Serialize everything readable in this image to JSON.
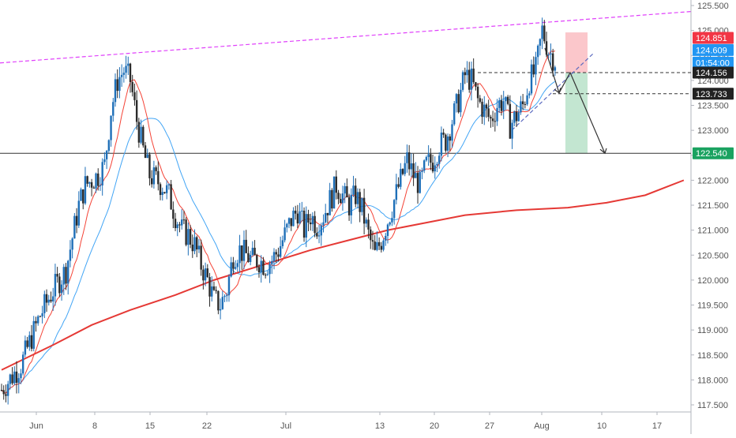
{
  "chart_data": {
    "type": "candlestick",
    "title": "",
    "xlabel": "",
    "ylabel": "",
    "ylim": [
      117.2,
      125.8
    ],
    "grid": false,
    "x_ticks": [
      "Jun",
      "8",
      "15",
      "22",
      "Jul",
      "13",
      "20",
      "27",
      "Aug",
      "10",
      "17"
    ],
    "y_ticks": [
      "117.500",
      "118.000",
      "118.500",
      "119.000",
      "119.500",
      "120.000",
      "120.500",
      "121.000",
      "121.500",
      "122.000",
      "122.500",
      "123.000",
      "123.500",
      "124.000",
      "124.500",
      "125.000",
      "125.500"
    ],
    "close_path": [
      [
        0,
        117.8
      ],
      [
        3,
        118.3
      ],
      [
        6,
        119.3
      ],
      [
        8,
        119.8
      ],
      [
        10,
        120.2
      ],
      [
        12,
        121.5
      ],
      [
        13,
        121.9
      ],
      [
        15,
        122.1
      ],
      [
        16,
        122.3
      ],
      [
        17,
        123.4
      ],
      [
        18,
        124.0
      ],
      [
        19,
        124.2
      ],
      [
        20,
        124.0
      ],
      [
        21,
        123.2
      ],
      [
        22,
        122.6
      ],
      [
        23,
        122.1
      ],
      [
        24,
        122.0
      ],
      [
        25,
        121.9
      ],
      [
        26,
        121.7
      ],
      [
        27,
        121.3
      ],
      [
        28,
        121.0
      ],
      [
        29,
        120.9
      ],
      [
        30,
        120.7
      ],
      [
        31,
        120.3
      ],
      [
        32,
        120.0
      ],
      [
        33,
        119.6
      ],
      [
        34,
        119.5
      ],
      [
        35,
        119.8
      ],
      [
        36,
        120.5
      ],
      [
        37,
        120.6
      ],
      [
        38,
        120.5
      ],
      [
        39,
        120.4
      ],
      [
        40,
        120.4
      ],
      [
        41,
        120.3
      ],
      [
        42,
        120.4
      ],
      [
        43,
        120.6
      ],
      [
        44,
        120.9
      ],
      [
        45,
        121.2
      ],
      [
        46,
        121.4
      ],
      [
        47,
        121.0
      ],
      [
        48,
        121.3
      ],
      [
        49,
        121.1
      ],
      [
        50,
        121.3
      ],
      [
        51,
        121.6
      ],
      [
        52,
        121.9
      ],
      [
        53,
        121.7
      ],
      [
        54,
        121.5
      ],
      [
        55,
        121.7
      ],
      [
        56,
        121.4
      ],
      [
        57,
        120.9
      ],
      [
        58,
        120.5
      ],
      [
        59,
        120.8
      ],
      [
        60,
        121.2
      ],
      [
        61,
        121.6
      ],
      [
        62,
        122.0
      ],
      [
        63,
        122.4
      ],
      [
        64,
        122.1
      ],
      [
        65,
        121.9
      ],
      [
        66,
        122.3
      ],
      [
        67,
        122.4
      ],
      [
        68,
        122.7
      ],
      [
        69,
        122.8
      ],
      [
        70,
        123.2
      ],
      [
        71,
        123.6
      ],
      [
        72,
        124.1
      ],
      [
        73,
        124.0
      ],
      [
        74,
        123.6
      ],
      [
        75,
        123.4
      ],
      [
        76,
        123.2
      ],
      [
        77,
        123.5
      ],
      [
        78,
        123.6
      ],
      [
        79,
        123.1
      ],
      [
        80,
        123.3
      ],
      [
        81,
        123.5
      ],
      [
        82,
        124.0
      ],
      [
        83,
        124.2
      ],
      [
        84,
        125.0
      ],
      [
        85,
        124.6
      ],
      [
        86,
        124.4
      ]
    ],
    "series": [
      {
        "name": "",
        "color": "#e53935",
        "points": [
          [
            106,
            122.0
          ],
          [
            104,
            121.9
          ],
          [
            100,
            121.7
          ],
          [
            94,
            121.55
          ],
          [
            88,
            121.45
          ],
          [
            80,
            121.4
          ],
          [
            72,
            121.3
          ],
          [
            66,
            121.15
          ],
          [
            60,
            121.0
          ],
          [
            54,
            120.8
          ],
          [
            48,
            120.6
          ],
          [
            43,
            120.4
          ],
          [
            38,
            120.2
          ],
          [
            33,
            120.0
          ],
          [
            27,
            119.7
          ],
          [
            20,
            119.4
          ],
          [
            14,
            119.1
          ],
          [
            8,
            118.7
          ],
          [
            0,
            118.2
          ]
        ]
      },
      {
        "name": "",
        "color": "#f44336",
        "points": []
      },
      {
        "name": "",
        "color": "#42a5f5",
        "points": []
      }
    ],
    "horizontal_lines": [
      {
        "label": "122.540",
        "value": 122.54,
        "style": "solid",
        "color": "#333333"
      }
    ],
    "price_labels": [
      {
        "value": "124.851",
        "bg": "#f23645"
      },
      {
        "value": "124.609",
        "bg": "#2196f3"
      },
      {
        "value": "01:54:00",
        "bg": "#2196f3"
      },
      {
        "value": "124.156",
        "bg": "#222222"
      },
      {
        "value": "123.733",
        "bg": "#222222"
      },
      {
        "value": "122.540",
        "bg": "#1aa260"
      }
    ],
    "trade_zone": {
      "entry": 124.156,
      "stop": 124.851,
      "target": 122.54
    }
  }
}
